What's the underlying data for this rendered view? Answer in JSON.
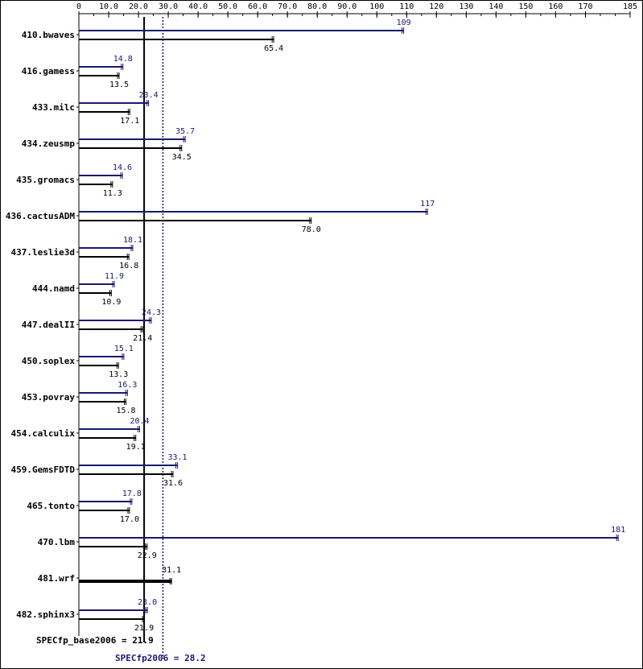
{
  "chart_data": {
    "type": "bar",
    "orientation": "horizontal",
    "x_ticks": [
      "0",
      "10.0",
      "20.0",
      "30.0",
      "40.0",
      "50.0",
      "60.0",
      "70.0",
      "80.0",
      "90.0",
      "100",
      "110",
      "120",
      "130",
      "140",
      "150",
      "160",
      "170",
      "185"
    ],
    "x_tick_values": [
      0,
      10,
      20,
      30,
      40,
      50,
      60,
      70,
      80,
      90,
      100,
      110,
      120,
      130,
      140,
      150,
      160,
      170,
      185
    ],
    "xlim": [
      0,
      185
    ],
    "grid": false,
    "categories": [
      "410.bwaves",
      "416.gamess",
      "433.milc",
      "434.zeusmp",
      "435.gromacs",
      "436.cactusADM",
      "437.leslie3d",
      "444.namd",
      "447.dealII",
      "450.soplex",
      "453.povray",
      "454.calculix",
      "459.GemsFDTD",
      "465.tonto",
      "470.lbm",
      "481.wrf",
      "482.sphinx3"
    ],
    "series": [
      {
        "name": "peak",
        "color": "#191970",
        "values": [
          109,
          14.8,
          23.4,
          35.7,
          14.6,
          117,
          18.1,
          11.9,
          24.3,
          15.1,
          16.3,
          20.4,
          33.1,
          17.8,
          181,
          31.1,
          23.0
        ],
        "labels": [
          "109",
          "14.8",
          "23.4",
          "35.7",
          "14.6",
          "117",
          "18.1",
          "11.9",
          "24.3",
          "15.1",
          "16.3",
          "20.4",
          "33.1",
          "17.8",
          "181",
          "",
          "23.0"
        ]
      },
      {
        "name": "base",
        "color": "#000000",
        "values": [
          65.4,
          13.5,
          17.1,
          34.5,
          11.3,
          78.0,
          16.8,
          10.9,
          21.4,
          13.3,
          15.8,
          19.1,
          31.6,
          17.0,
          22.9,
          31.1,
          21.9
        ],
        "labels": [
          "65.4",
          "13.5",
          "17.1",
          "34.5",
          "11.3",
          "78.0",
          "16.8",
          "10.9",
          "21.4",
          "13.3",
          "15.8",
          "19.1",
          "31.6",
          "17.0",
          "22.9",
          "31.1",
          "21.9"
        ]
      }
    ],
    "combined_bar_category": "481.wrf",
    "summary": {
      "base_label": "SPECfp_base2006 = 21.9",
      "base_value": 21.9,
      "base_color": "#000000",
      "peak_label": "SPECfp2006 = 28.2",
      "peak_value": 28.2,
      "peak_color": "#191970"
    }
  }
}
